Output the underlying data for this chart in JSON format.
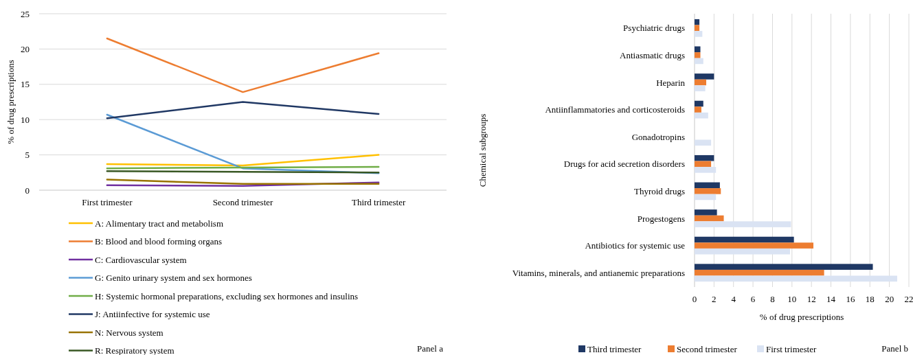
{
  "chart_data": [
    {
      "type": "line",
      "ylabel": "% of drug prescriptions",
      "categories": [
        "First trimester",
        "Second trimester",
        "Third trimester"
      ],
      "ylim": [
        0,
        25
      ],
      "yticks": [
        0,
        5,
        10,
        15,
        20,
        25
      ],
      "grid": "y",
      "legend": "bottom",
      "series": [
        {
          "name": "A: Alimentary tract and metabolism",
          "color": "#ffc000",
          "values": [
            3.7,
            3.5,
            5.0
          ]
        },
        {
          "name": "B: Blood and blood forming organs",
          "color": "#ed7d31",
          "values": [
            21.5,
            13.9,
            19.4
          ]
        },
        {
          "name": "C: Cardiovascular system",
          "color": "#7030a0",
          "values": [
            0.7,
            0.6,
            1.1
          ]
        },
        {
          "name": "G: Genito urinary system and sex hormones",
          "color": "#5b9bd5",
          "values": [
            10.7,
            3.1,
            2.4
          ]
        },
        {
          "name": "H: Systemic hormonal preparations, excluding sex hormones and insulins",
          "color": "#70ad47",
          "values": [
            3.1,
            3.2,
            3.3
          ]
        },
        {
          "name": "J: Antiinfective for systemic use",
          "color": "#203864",
          "values": [
            10.2,
            12.5,
            10.8
          ]
        },
        {
          "name": "N: Nervous system",
          "color": "#997300",
          "values": [
            1.5,
            0.9,
            0.9
          ]
        },
        {
          "name": "R: Respiratory system",
          "color": "#385723",
          "values": [
            2.7,
            2.6,
            2.5
          ]
        }
      ],
      "annotations": [
        "Panel a"
      ]
    },
    {
      "type": "bar",
      "orientation": "horizontal",
      "xlabel": "% of drug prescriptions",
      "ylabel": "Chemical subgroups",
      "categories": [
        "Psychiatric drugs",
        "Antiasmatic drugs",
        "Heparin",
        "Antiinflammatories and corticosteroids",
        "Gonadotropins",
        "Drugs for acid secretion disorders",
        "Thyroid drugs",
        "Progestogens",
        "Antibiotics for systemic use",
        "Vitamins, minerals, and antianemic preparations"
      ],
      "xlim": [
        0,
        22
      ],
      "xticks": [
        0,
        2,
        4,
        6,
        8,
        10,
        12,
        14,
        16,
        18,
        20,
        22
      ],
      "grid": "x",
      "legend": "bottom",
      "series": [
        {
          "name": "Third trimester",
          "color": "#1f3864",
          "values": [
            0.5,
            0.6,
            2.0,
            0.9,
            null,
            2.0,
            2.6,
            2.3,
            10.2,
            18.3
          ]
        },
        {
          "name": "Second trimester",
          "color": "#ed7d31",
          "values": [
            0.5,
            0.6,
            1.2,
            0.7,
            null,
            1.7,
            2.7,
            3.0,
            12.2,
            13.3
          ]
        },
        {
          "name": "First trimester",
          "color": "#dae3f3",
          "values": [
            0.8,
            0.9,
            1.1,
            1.4,
            1.7,
            2.2,
            2.2,
            9.9,
            9.8,
            20.8
          ]
        }
      ],
      "annotations": [
        "Panel b"
      ]
    }
  ]
}
